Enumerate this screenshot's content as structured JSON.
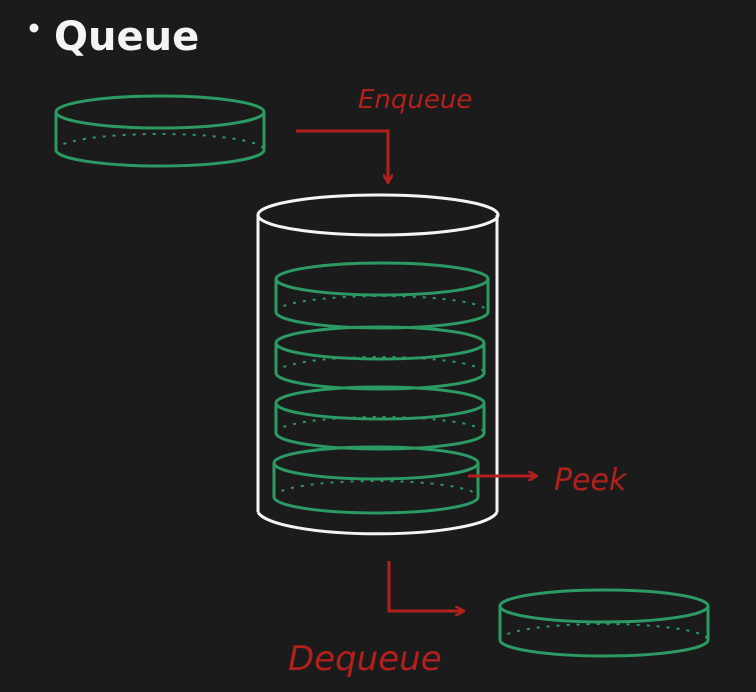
{
  "title": "Queue",
  "bullet": "•",
  "labels": {
    "enqueue": "Enqueue",
    "peek": "Peek",
    "dequeue": "Dequeue"
  },
  "colors": {
    "background": "#1b1b1c",
    "ink": "#f4f4f4",
    "disc": "#2c9a63",
    "arrow": "#b3201c"
  },
  "stack": {
    "stacked_discs": 4
  }
}
